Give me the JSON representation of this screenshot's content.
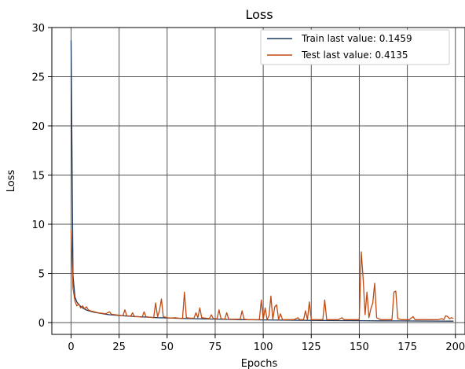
{
  "chart_data": {
    "type": "line",
    "title": "Loss",
    "xlabel": "Epochs",
    "ylabel": "Loss",
    "xlim": [
      -10,
      205
    ],
    "ylim": [
      -1.2,
      30
    ],
    "xticks": [
      0,
      25,
      50,
      75,
      100,
      125,
      150,
      175,
      200
    ],
    "yticks": [
      0,
      5,
      10,
      15,
      20,
      25,
      30
    ],
    "grid": true,
    "legend_position": "top-right",
    "series": [
      {
        "name": "Train last value: 0.1459",
        "color": "#1f3a5f",
        "points": [
          [
            0,
            28.7
          ],
          [
            1,
            4.8
          ],
          [
            2,
            2.6
          ],
          [
            3,
            2.1
          ],
          [
            4,
            1.85
          ],
          [
            5,
            1.65
          ],
          [
            6,
            1.5
          ],
          [
            7,
            1.38
          ],
          [
            8,
            1.28
          ],
          [
            10,
            1.15
          ],
          [
            12,
            1.05
          ],
          [
            15,
            0.95
          ],
          [
            18,
            0.86
          ],
          [
            20,
            0.8
          ],
          [
            25,
            0.72
          ],
          [
            30,
            0.65
          ],
          [
            35,
            0.6
          ],
          [
            40,
            0.55
          ],
          [
            45,
            0.5
          ],
          [
            50,
            0.47
          ],
          [
            55,
            0.44
          ],
          [
            60,
            0.41
          ],
          [
            65,
            0.39
          ],
          [
            70,
            0.37
          ],
          [
            75,
            0.35
          ],
          [
            80,
            0.33
          ],
          [
            85,
            0.31
          ],
          [
            90,
            0.3
          ],
          [
            95,
            0.28
          ],
          [
            100,
            0.27
          ],
          [
            110,
            0.25
          ],
          [
            120,
            0.23
          ],
          [
            130,
            0.22
          ],
          [
            140,
            0.2
          ],
          [
            150,
            0.19
          ],
          [
            160,
            0.18
          ],
          [
            170,
            0.17
          ],
          [
            180,
            0.16
          ],
          [
            190,
            0.155
          ],
          [
            199,
            0.1459
          ]
        ]
      },
      {
        "name": "Test last value: 0.4135",
        "color": "#c04a12",
        "points": [
          [
            0,
            9.4
          ],
          [
            1,
            3.5
          ],
          [
            2,
            2.2
          ],
          [
            3,
            1.7
          ],
          [
            4,
            1.9
          ],
          [
            5,
            1.5
          ],
          [
            6,
            1.7
          ],
          [
            7,
            1.4
          ],
          [
            8,
            1.6
          ],
          [
            9,
            1.3
          ],
          [
            10,
            1.2
          ],
          [
            12,
            1.1
          ],
          [
            14,
            1.0
          ],
          [
            16,
            0.95
          ],
          [
            18,
            0.9
          ],
          [
            20,
            1.1
          ],
          [
            21,
            0.85
          ],
          [
            23,
            0.8
          ],
          [
            25,
            0.75
          ],
          [
            27,
            0.7
          ],
          [
            28,
            1.3
          ],
          [
            29,
            0.7
          ],
          [
            31,
            0.65
          ],
          [
            32,
            1.0
          ],
          [
            33,
            0.6
          ],
          [
            35,
            0.6
          ],
          [
            37,
            0.55
          ],
          [
            38,
            1.1
          ],
          [
            39,
            0.6
          ],
          [
            41,
            0.55
          ],
          [
            43,
            0.5
          ],
          [
            44,
            2.0
          ],
          [
            45,
            0.6
          ],
          [
            46,
            1.2
          ],
          [
            47,
            2.4
          ],
          [
            48,
            0.6
          ],
          [
            50,
            0.5
          ],
          [
            52,
            0.45
          ],
          [
            54,
            0.5
          ],
          [
            56,
            0.45
          ],
          [
            58,
            0.4
          ],
          [
            59,
            3.1
          ],
          [
            60,
            0.5
          ],
          [
            62,
            0.45
          ],
          [
            64,
            0.45
          ],
          [
            65,
            1.0
          ],
          [
            66,
            0.5
          ],
          [
            67,
            1.5
          ],
          [
            68,
            0.5
          ],
          [
            70,
            0.45
          ],
          [
            72,
            0.4
          ],
          [
            73,
            0.8
          ],
          [
            74,
            0.4
          ],
          [
            76,
            0.4
          ],
          [
            77,
            1.3
          ],
          [
            78,
            0.4
          ],
          [
            80,
            0.35
          ],
          [
            81,
            1.0
          ],
          [
            82,
            0.35
          ],
          [
            84,
            0.35
          ],
          [
            86,
            0.35
          ],
          [
            88,
            0.35
          ],
          [
            89,
            1.2
          ],
          [
            90,
            0.35
          ],
          [
            92,
            0.3
          ],
          [
            94,
            0.3
          ],
          [
            96,
            0.3
          ],
          [
            98,
            0.3
          ],
          [
            99,
            2.3
          ],
          [
            100,
            0.3
          ],
          [
            101,
            1.5
          ],
          [
            102,
            0.3
          ],
          [
            103,
            0.7
          ],
          [
            104,
            2.7
          ],
          [
            105,
            0.3
          ],
          [
            106,
            1.6
          ],
          [
            107,
            1.8
          ],
          [
            108,
            0.3
          ],
          [
            109,
            0.9
          ],
          [
            110,
            0.3
          ],
          [
            112,
            0.3
          ],
          [
            114,
            0.3
          ],
          [
            116,
            0.3
          ],
          [
            118,
            0.5
          ],
          [
            119,
            0.3
          ],
          [
            121,
            0.3
          ],
          [
            122,
            1.2
          ],
          [
            123,
            0.3
          ],
          [
            124,
            2.1
          ],
          [
            125,
            0.3
          ],
          [
            127,
            0.3
          ],
          [
            129,
            0.3
          ],
          [
            131,
            0.3
          ],
          [
            132,
            2.3
          ],
          [
            133,
            0.3
          ],
          [
            135,
            0.3
          ],
          [
            137,
            0.3
          ],
          [
            139,
            0.3
          ],
          [
            141,
            0.5
          ],
          [
            142,
            0.3
          ],
          [
            144,
            0.3
          ],
          [
            146,
            0.3
          ],
          [
            148,
            0.3
          ],
          [
            150,
            0.3
          ],
          [
            151,
            7.2
          ],
          [
            152,
            4.5
          ],
          [
            153,
            0.8
          ],
          [
            154,
            3.1
          ],
          [
            155,
            0.5
          ],
          [
            156,
            1.4
          ],
          [
            157,
            2.0
          ],
          [
            158,
            4.0
          ],
          [
            159,
            0.5
          ],
          [
            161,
            0.3
          ],
          [
            163,
            0.3
          ],
          [
            165,
            0.3
          ],
          [
            167,
            0.3
          ],
          [
            168,
            3.1
          ],
          [
            169,
            3.2
          ],
          [
            170,
            0.4
          ],
          [
            172,
            0.3
          ],
          [
            174,
            0.3
          ],
          [
            176,
            0.3
          ],
          [
            178,
            0.6
          ],
          [
            179,
            0.3
          ],
          [
            181,
            0.3
          ],
          [
            183,
            0.3
          ],
          [
            185,
            0.3
          ],
          [
            187,
            0.3
          ],
          [
            189,
            0.3
          ],
          [
            191,
            0.3
          ],
          [
            193,
            0.4
          ],
          [
            194,
            0.3
          ],
          [
            195,
            0.7
          ],
          [
            196,
            0.6
          ],
          [
            197,
            0.4
          ],
          [
            198,
            0.5
          ],
          [
            199,
            0.4135
          ]
        ]
      }
    ]
  }
}
